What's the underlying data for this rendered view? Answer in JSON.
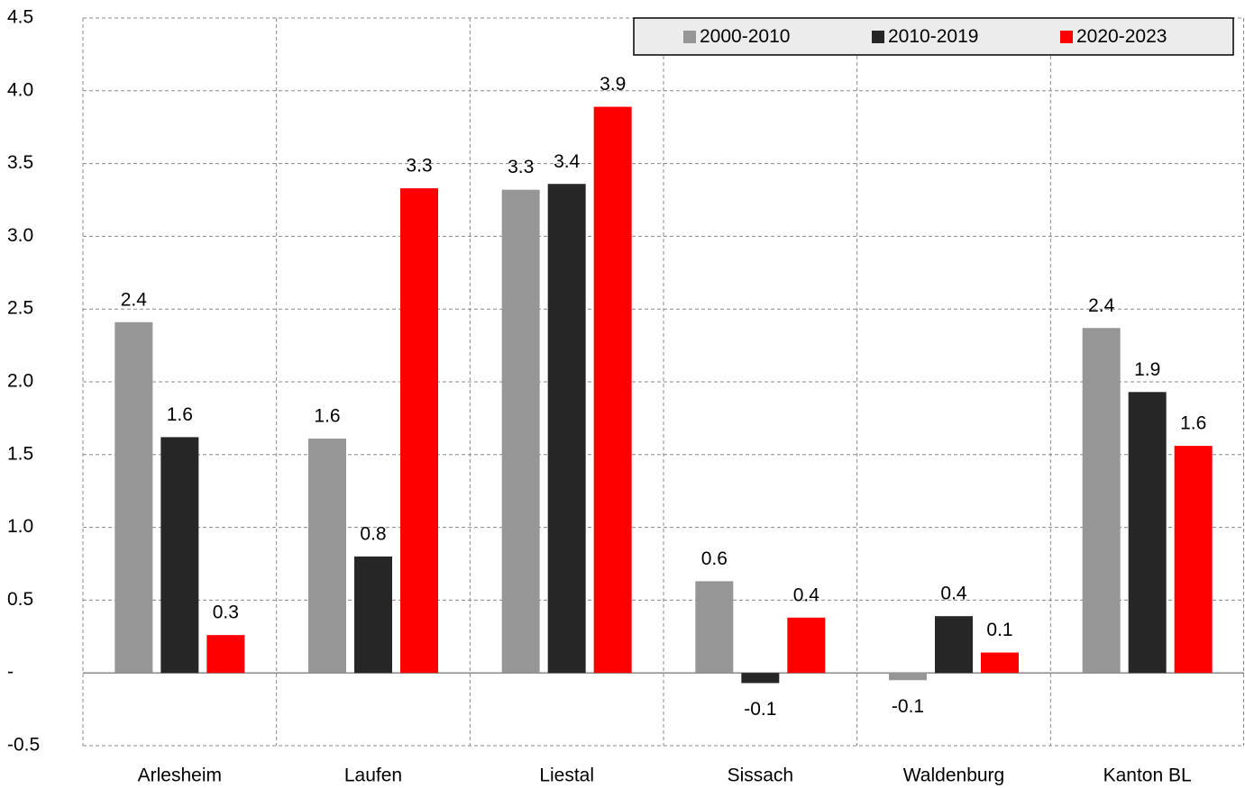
{
  "chart_data": {
    "type": "bar",
    "categories": [
      "Arlesheim",
      "Laufen",
      "Liestal",
      "Sissach",
      "Waldenburg",
      "Kanton BL"
    ],
    "series": [
      {
        "name": "2000-2010",
        "color": "#969696",
        "values": [
          2.41,
          1.61,
          3.32,
          0.63,
          -0.05,
          2.37
        ],
        "value_labels": [
          "2.4",
          "1.6",
          "3.3",
          "0.6",
          "-0.1",
          "2.4"
        ]
      },
      {
        "name": "2010-2019",
        "color": "#262626",
        "values": [
          1.62,
          0.8,
          3.36,
          -0.07,
          0.39,
          1.93
        ],
        "value_labels": [
          "1.6",
          "0.8",
          "3.4",
          "-0.1",
          "0.4",
          "1.9"
        ]
      },
      {
        "name": "2020-2023",
        "color": "#ff0000",
        "values": [
          0.26,
          3.33,
          3.89,
          0.38,
          0.14,
          1.56
        ],
        "value_labels": [
          "0.3",
          "3.3",
          "3.9",
          "0.4",
          "0.1",
          "1.6"
        ]
      }
    ],
    "ylim": [
      -0.5,
      4.5
    ],
    "yticks": [
      -0.5,
      {
        "value": 0,
        "label": "-"
      },
      0.5,
      {
        "value": 1,
        "label": "1.0"
      },
      1.5,
      {
        "value": 2,
        "label": "2.0"
      },
      2.5,
      {
        "value": 3,
        "label": "3.0"
      },
      3.5,
      {
        "value": 4,
        "label": "4.0"
      },
      4.5
    ],
    "grid": true,
    "legend": "top-right"
  }
}
